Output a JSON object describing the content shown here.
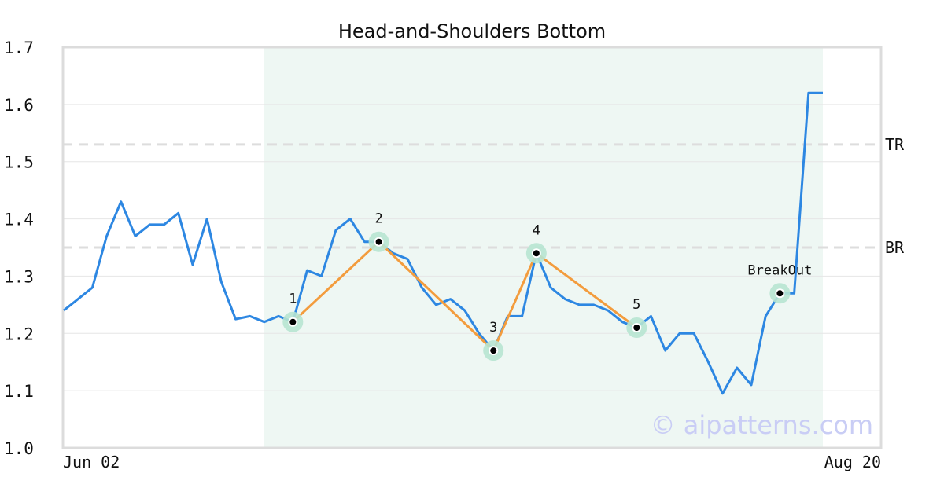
{
  "chart_data": {
    "type": "line",
    "title": "Head-and-Shoulders Bottom",
    "xlabel": "",
    "ylabel": "",
    "ylim": [
      1.0,
      1.7
    ],
    "yticks": [
      "1.0",
      "1.1",
      "1.2",
      "1.3",
      "1.4",
      "1.5",
      "1.6",
      "1.7"
    ],
    "xtick_labels": [
      "Jun 02",
      "Aug 20"
    ],
    "grid": "horizontal",
    "series": [
      {
        "values": [
          1.24,
          1.26,
          1.28,
          1.37,
          1.43,
          1.37,
          1.39,
          1.39,
          1.41,
          1.32,
          1.4,
          1.29,
          1.225,
          1.23,
          1.22,
          1.23,
          1.22,
          1.31,
          1.3,
          1.38,
          1.4,
          1.36,
          1.36,
          1.34,
          1.33,
          1.28,
          1.25,
          1.26,
          1.24,
          1.2,
          1.17,
          1.23,
          1.23,
          1.34,
          1.28,
          1.26,
          1.25,
          1.25,
          1.24,
          1.22,
          1.21,
          1.23,
          1.17,
          1.2,
          1.2,
          1.15,
          1.095,
          1.14,
          1.11,
          1.23,
          1.27,
          1.27,
          1.62,
          1.62
        ],
        "color": "#2d87e2"
      }
    ],
    "pattern": {
      "name": "Head-and-Shoulders Bottom",
      "region": {
        "start_index": 14,
        "end_index": 53
      },
      "region_color": "#eef7f3",
      "line_color": "#f39c3d",
      "points": [
        {
          "label": "1",
          "index": 16,
          "value": 1.22
        },
        {
          "label": "2",
          "index": 22,
          "value": 1.36
        },
        {
          "label": "3",
          "index": 30,
          "value": 1.17
        },
        {
          "label": "4",
          "index": 33,
          "value": 1.34
        },
        {
          "label": "5",
          "index": 40,
          "value": 1.21
        }
      ],
      "breakout": {
        "label": "BreakOut",
        "index": 50,
        "value": 1.27
      }
    },
    "levels": [
      {
        "label": "TR",
        "value": 1.53
      },
      {
        "label": "BR",
        "value": 1.35
      }
    ],
    "watermark": "© aipatterns.com"
  }
}
